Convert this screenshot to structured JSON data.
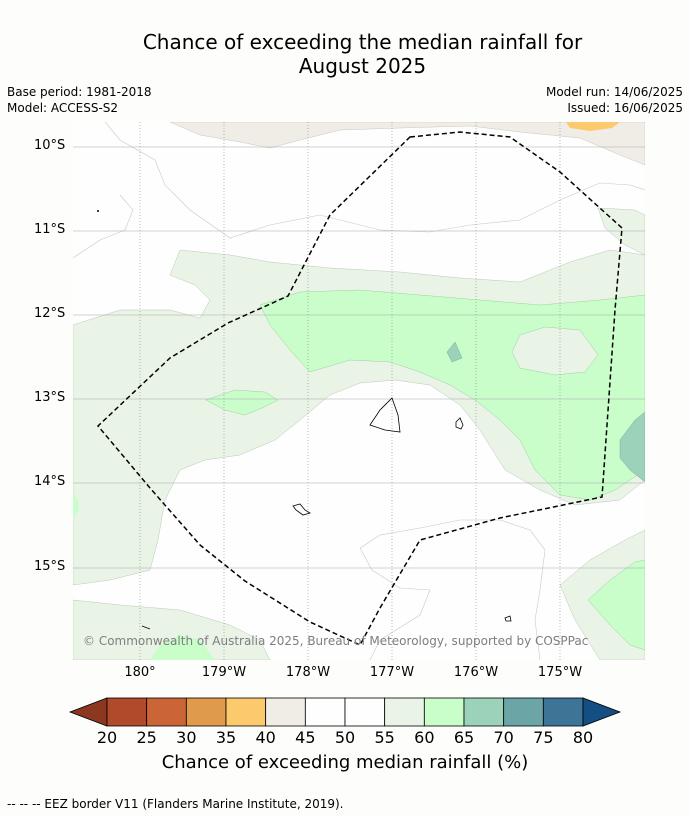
{
  "title_line1": "Chance of exceeding the median rainfall for",
  "title_line2": "August 2025",
  "base_period": "Base period: 1981-2018",
  "model": "Model: ACCESS-S2",
  "model_run": "Model run: 14/06/2025",
  "issued": "Issued: 16/06/2025",
  "copyright": "© Commonwealth of Australia 2025, Bureau of Meteorology, supported by COSPPac",
  "lat_labels": [
    "10°S",
    "11°S",
    "12°S",
    "13°S",
    "14°S",
    "15°S"
  ],
  "lon_labels": [
    "180°",
    "179°W",
    "178°W",
    "177°W",
    "176°W",
    "175°W"
  ],
  "colorbar": {
    "ticks": [
      "20",
      "25",
      "30",
      "35",
      "40",
      "45",
      "50",
      "55",
      "60",
      "65",
      "70",
      "75",
      "80"
    ],
    "colors": [
      "#b04a2a",
      "#cc6536",
      "#e09a4c",
      "#fcc96c",
      "#f0ede7",
      "#fefefe",
      "#fefefe",
      "#e9f4e7",
      "#c9fdca",
      "#9cd1ba",
      "#6ba5a6",
      "#3e7596"
    ],
    "under_color": "#8c3821",
    "over_color": "#144e83",
    "label": "Chance of exceeding median rainfall (%)"
  },
  "legend_footer": "--  --  -- EEZ border V11 (Flanders Marine Institute, 2019)."
}
